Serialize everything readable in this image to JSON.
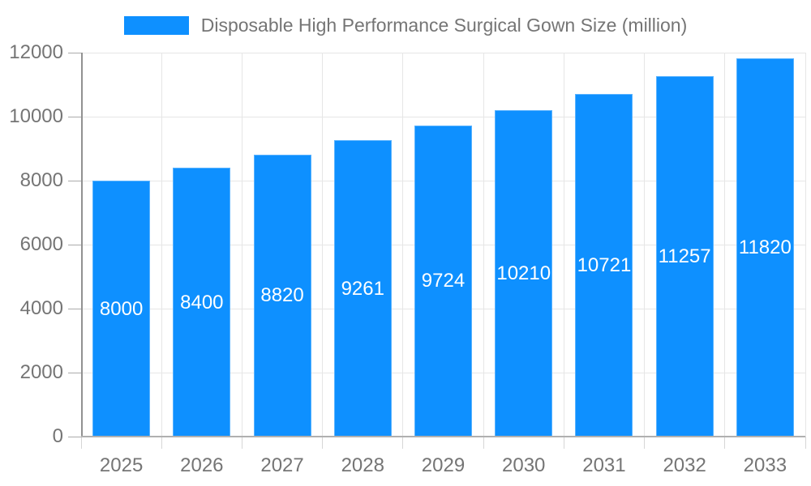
{
  "chart_data": {
    "type": "bar",
    "title": "Disposable High Performance Surgical Gown Size (million)",
    "categories": [
      "2025",
      "2026",
      "2027",
      "2028",
      "2029",
      "2030",
      "2031",
      "2032",
      "2033"
    ],
    "series": [
      {
        "name": "Disposable High Performance Surgical Gown Size (million)",
        "values": [
          8000,
          8400,
          8820,
          9261,
          9724,
          10210,
          10721,
          11257,
          11820
        ]
      }
    ],
    "value_labels": [
      "8000",
      "8400",
      "8820",
      "9261",
      "9724",
      "10210",
      "10721",
      "11257",
      "11820"
    ],
    "xlabel": "",
    "ylabel": "",
    "ylim": [
      0,
      12000
    ],
    "y_ticks": [
      0,
      2000,
      4000,
      6000,
      8000,
      10000,
      12000
    ],
    "grid": "horizontal and vertical",
    "legend_position": "top"
  },
  "colors": {
    "bar": "#0e90ff",
    "bar_edge": "#5ab3ff",
    "value_label": "#ffffff",
    "axis_text": "#757575",
    "grid": "#e6e6e6",
    "axis_line_y": "#919191",
    "axis_line_x": "#b0b0b0",
    "tick_y": "#ababab",
    "tick_x": "#d6d6d6",
    "background": "#ffffff"
  }
}
